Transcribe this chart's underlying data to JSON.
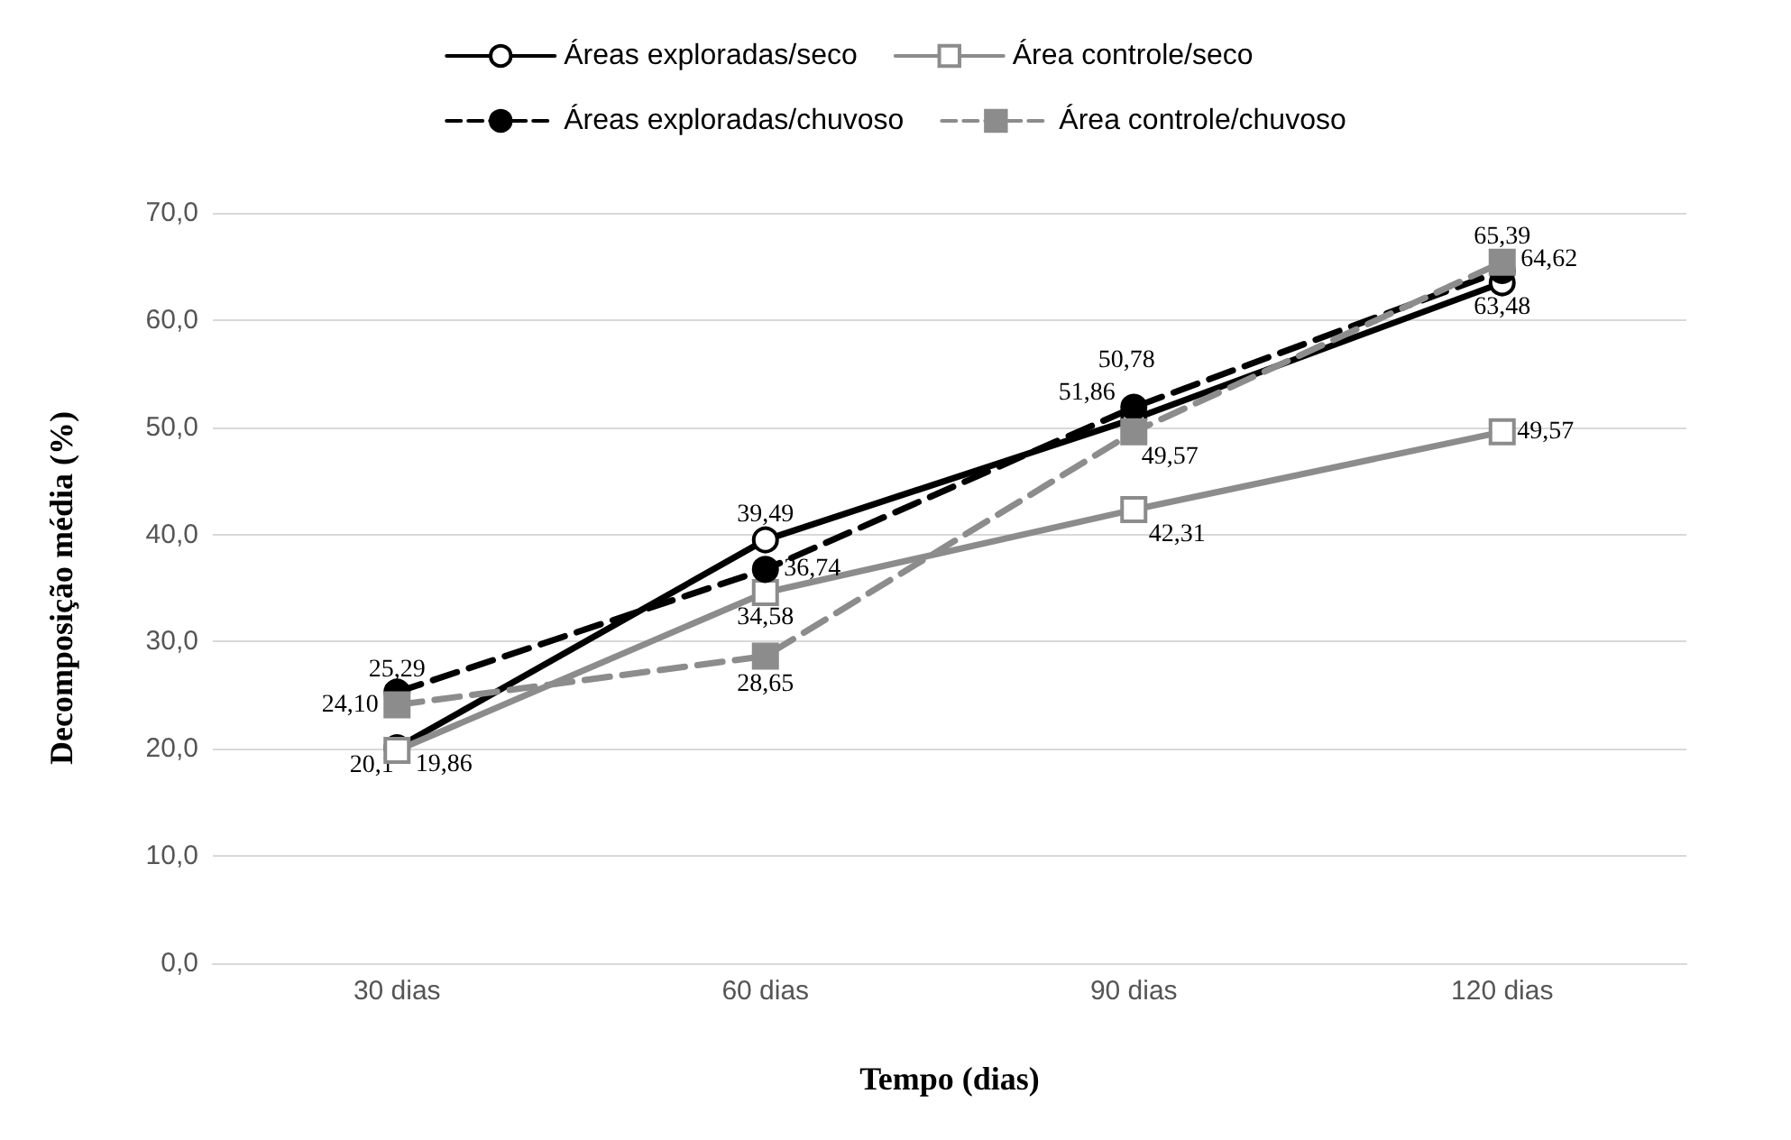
{
  "chart_data": {
    "type": "line",
    "xlabel": "Tempo (dias)",
    "ylabel": "Decomposição média (%)",
    "categories": [
      "30 dias",
      "60 dias",
      "90 dias",
      "120 dias"
    ],
    "series": [
      {
        "name": "Áreas exploradas/seco",
        "color": "#000000",
        "line_style": "solid",
        "marker": "circle",
        "values": [
          20.1,
          39.49,
          50.78,
          63.48
        ],
        "value_labels": [
          "20,1",
          "39,49",
          "50,78",
          "63,48"
        ]
      },
      {
        "name": "Área controle/seco",
        "color": "#8c8c8c",
        "line_style": "solid",
        "marker": "square",
        "values": [
          19.86,
          34.58,
          42.31,
          49.57
        ],
        "value_labels": [
          "19,86",
          "34,58",
          "42,31",
          "49,57"
        ]
      },
      {
        "name": "Áreas exploradas/chuvoso",
        "color": "#000000",
        "line_style": "dashed",
        "marker": "circle",
        "values": [
          25.29,
          36.74,
          51.86,
          64.62
        ],
        "value_labels": [
          "25,29",
          "36,74",
          "51,86",
          "64,62"
        ]
      },
      {
        "name": "Área controle/chuvoso",
        "color": "#8c8c8c",
        "line_style": "dashed",
        "marker": "square",
        "values": [
          24.1,
          28.65,
          49.57,
          65.39
        ],
        "value_labels": [
          "24,10",
          "28,65",
          "49,57",
          "65,39"
        ]
      }
    ],
    "ylim": [
      0,
      70
    ],
    "yticks": [
      {
        "value": 0,
        "label": "0,0"
      },
      {
        "value": 10,
        "label": "10,0"
      },
      {
        "value": 20,
        "label": "20,0"
      },
      {
        "value": 30,
        "label": "30,0"
      },
      {
        "value": 40,
        "label": "40,0"
      },
      {
        "value": 50,
        "label": "50,0"
      },
      {
        "value": 60,
        "label": "60,0"
      },
      {
        "value": 70,
        "label": "70,0"
      }
    ],
    "grid": "y",
    "legend": "top"
  }
}
